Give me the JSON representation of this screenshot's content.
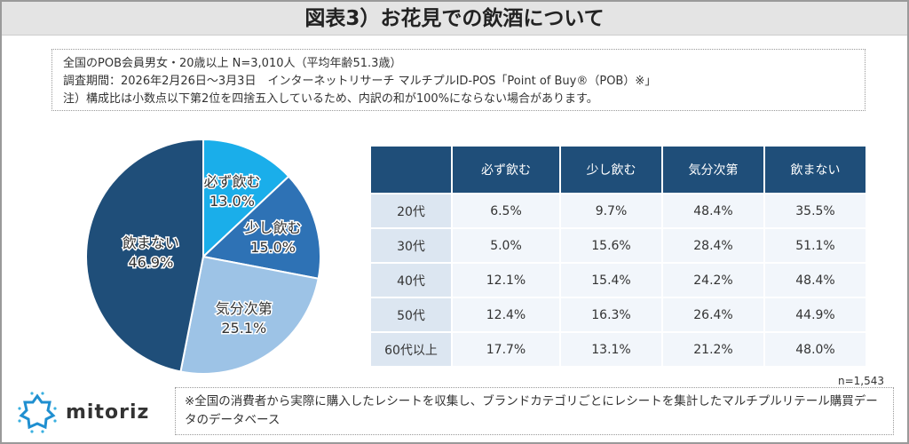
{
  "title": "図表3）お花見での飲酒について",
  "info": [
    "全国のPOB会員男女・20歳以上 N=3,010人（平均年齢51.3歳）",
    "調査期間：2026年2月26日～3月3日　インターネットリサーチ マルチプルID-POS「Point of Buy®（POB）※」",
    "注）構成比は小数点以下第2位を四捨五入しているため、内訳の和が100%にならない場合があります。"
  ],
  "chart_data": [
    {
      "type": "pie",
      "slices": [
        {
          "label": "必ず飲む",
          "value": 13.0,
          "display": "13.0%",
          "color": "#1aaeea"
        },
        {
          "label": "少し飲む",
          "value": 15.0,
          "display": "15.0%",
          "color": "#2e72b5"
        },
        {
          "label": "気分次第",
          "value": 25.1,
          "display": "25.1%",
          "color": "#9dc3e6"
        },
        {
          "label": "飲まない",
          "value": 46.9,
          "display": "46.9%",
          "color": "#1f4e79"
        }
      ],
      "start": "top",
      "direction": "clockwise"
    },
    {
      "type": "table",
      "columns": [
        "",
        "必ず飲む",
        "少し飲む",
        "気分次第",
        "飲まない"
      ],
      "rows": [
        [
          "20代",
          "6.5%",
          "9.7%",
          "48.4%",
          "35.5%"
        ],
        [
          "30代",
          "5.0%",
          "15.6%",
          "28.4%",
          "51.1%"
        ],
        [
          "40代",
          "12.1%",
          "15.4%",
          "24.2%",
          "48.4%"
        ],
        [
          "50代",
          "12.4%",
          "16.3%",
          "26.4%",
          "44.9%"
        ],
        [
          "60代以上",
          "17.7%",
          "13.1%",
          "21.2%",
          "48.0%"
        ]
      ],
      "note": "n=1,543"
    }
  ],
  "footnote": "※全国の消費者から実際に購入したレシートを収集し、ブランドカテゴリごとにレシートを集計したマルチプルリテール購買データのデータベース",
  "logo": "mitoriz"
}
